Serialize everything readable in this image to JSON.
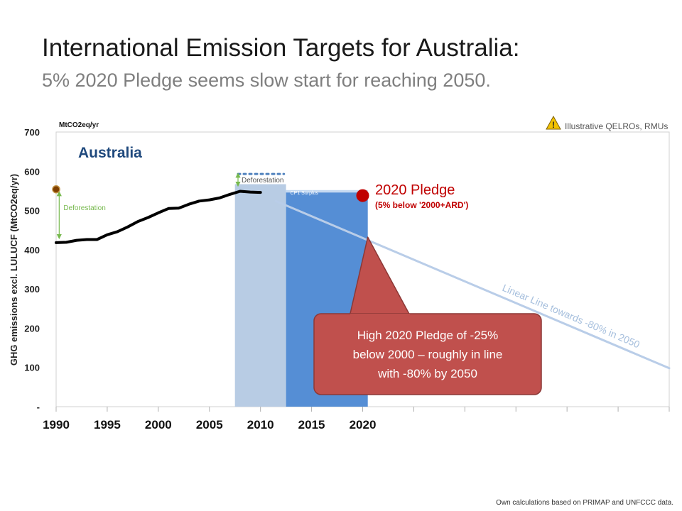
{
  "header": {
    "title": "International Emission Targets for Australia:",
    "subtitle": "5% 2020 Pledge seems slow start for reaching 2050."
  },
  "footer": {
    "source": "Own calculations based on PRIMAP and UNFCCC data."
  },
  "chart_data": {
    "type": "line",
    "unit_label": "MtCO2eq/yr",
    "ylabel": "GHG emissions excl. LULUCF (MtCO2eq/yr)",
    "country": "Australia",
    "warning": "Illustrative QELROs, RMUs",
    "ylim": [
      0,
      700
    ],
    "xlim": [
      1990,
      2050
    ],
    "y_ticks": [
      "-",
      "100",
      "200",
      "300",
      "400",
      "500",
      "600",
      "700"
    ],
    "y_tick_values": [
      0,
      100,
      200,
      300,
      400,
      500,
      600,
      700
    ],
    "x_ticks": [
      "1990",
      "1995",
      "2000",
      "2005",
      "2010",
      "2015",
      "2020"
    ],
    "x_tick_values": [
      1990,
      1995,
      2000,
      2005,
      2010,
      2015,
      2020
    ],
    "x_grid_extra": [
      2025,
      2030,
      2035,
      2040,
      2045,
      2050
    ],
    "series": [
      {
        "values": [
          [
            1990,
            418
          ],
          [
            1991,
            419
          ],
          [
            1992,
            424
          ],
          [
            1993,
            426
          ],
          [
            1994,
            426
          ],
          [
            1995,
            438
          ],
          [
            1996,
            446
          ],
          [
            1997,
            458
          ],
          [
            1998,
            472
          ],
          [
            1999,
            482
          ],
          [
            2000,
            494
          ],
          [
            2001,
            505
          ],
          [
            2002,
            506
          ],
          [
            2003,
            516
          ],
          [
            2004,
            524
          ],
          [
            2005,
            527
          ],
          [
            2006,
            532
          ],
          [
            2007,
            541
          ],
          [
            2008,
            549
          ],
          [
            2009,
            547
          ],
          [
            2010,
            546
          ]
        ],
        "color": "#000000"
      },
      {
        "values": [
          [
            2011.5,
            524
          ],
          [
            2050,
            98
          ]
        ],
        "color": "#b9cde8"
      }
    ],
    "bars": [
      {
        "x_start": 2007.5,
        "x_end": 2012.5,
        "value": 567,
        "color": "#b8cce4"
      },
      {
        "x_start": 2012.5,
        "x_end": 2020.5,
        "value": 546,
        "color": "#558ed5"
      }
    ],
    "surplus_band": {
      "x_start": 2012.5,
      "x_end": 2020.5,
      "from": 546,
      "to": 552,
      "color": "#c5d9f1",
      "label": "CP1 Surplus"
    },
    "deforestation_dotted": {
      "x_start": 2007.8,
      "x_end": 2012.3,
      "value": 593,
      "color": "#4f81bd"
    },
    "deforestation_arrow_1990": {
      "x": 1990.3,
      "from": 554,
      "to": 426,
      "label": "Deforestation",
      "color": "#77b94e"
    },
    "deforestation_arrow_period": {
      "x": 2007.8,
      "from": 590,
      "to": 567,
      "label": "Deforestation",
      "color": "#77b94e"
    },
    "marker_1990": {
      "x": 1990,
      "y": 554,
      "color": "#7f3f00"
    },
    "pledge_point": {
      "x": 2020,
      "y": 538,
      "color": "#c00000"
    },
    "pledge_label": {
      "title": "2020 Pledge",
      "note": "(5% below '2000+ARD')"
    },
    "linear_line_label": "Linear Line towards -80% in 2050",
    "callout": {
      "text_lines": [
        "High 2020 Pledge of -25%",
        "below 2000 – roughly in line",
        "with -80% by 2050"
      ],
      "point_x": 2020.5,
      "point_y": 432,
      "color": "#c0504d"
    }
  }
}
